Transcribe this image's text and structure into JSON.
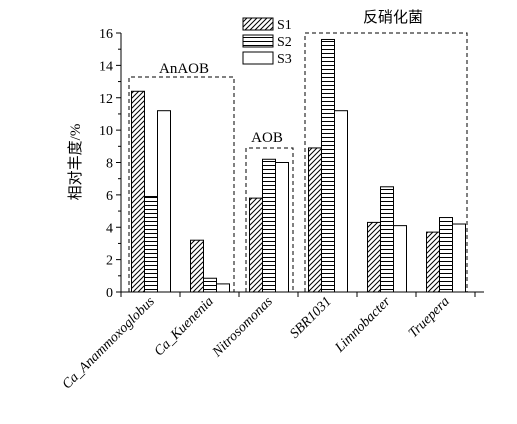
{
  "chart_data": {
    "type": "bar",
    "ylabel": "相对丰度/%",
    "ylim": [
      0,
      16
    ],
    "yticks": [
      0,
      2,
      4,
      6,
      8,
      10,
      12,
      14,
      16
    ],
    "categories": [
      "Ca_Anammoxoglobus",
      "Ca_Kuenenia",
      "Nitrosomonas",
      "SBR1031",
      "Limnobacter",
      "Truepera"
    ],
    "series": [
      {
        "name": "S1",
        "values": [
          12.4,
          3.2,
          5.8,
          8.9,
          4.3,
          3.7
        ]
      },
      {
        "name": "S2",
        "values": [
          5.9,
          0.85,
          8.2,
          15.6,
          6.5,
          4.6
        ]
      },
      {
        "name": "S3",
        "values": [
          11.2,
          0.5,
          8.0,
          11.2,
          4.1,
          4.2
        ]
      }
    ],
    "legend_position": "top",
    "groups": [
      {
        "label": "AnAOB",
        "categories": [
          "Ca_Anammoxoglobus",
          "Ca_Kuenenia"
        ]
      },
      {
        "label": "AOB",
        "categories": [
          "Nitrosomonas"
        ]
      },
      {
        "label": "反硝化菌",
        "categories": [
          "SBR1031",
          "Limnobacter",
          "Truepera"
        ]
      }
    ]
  }
}
